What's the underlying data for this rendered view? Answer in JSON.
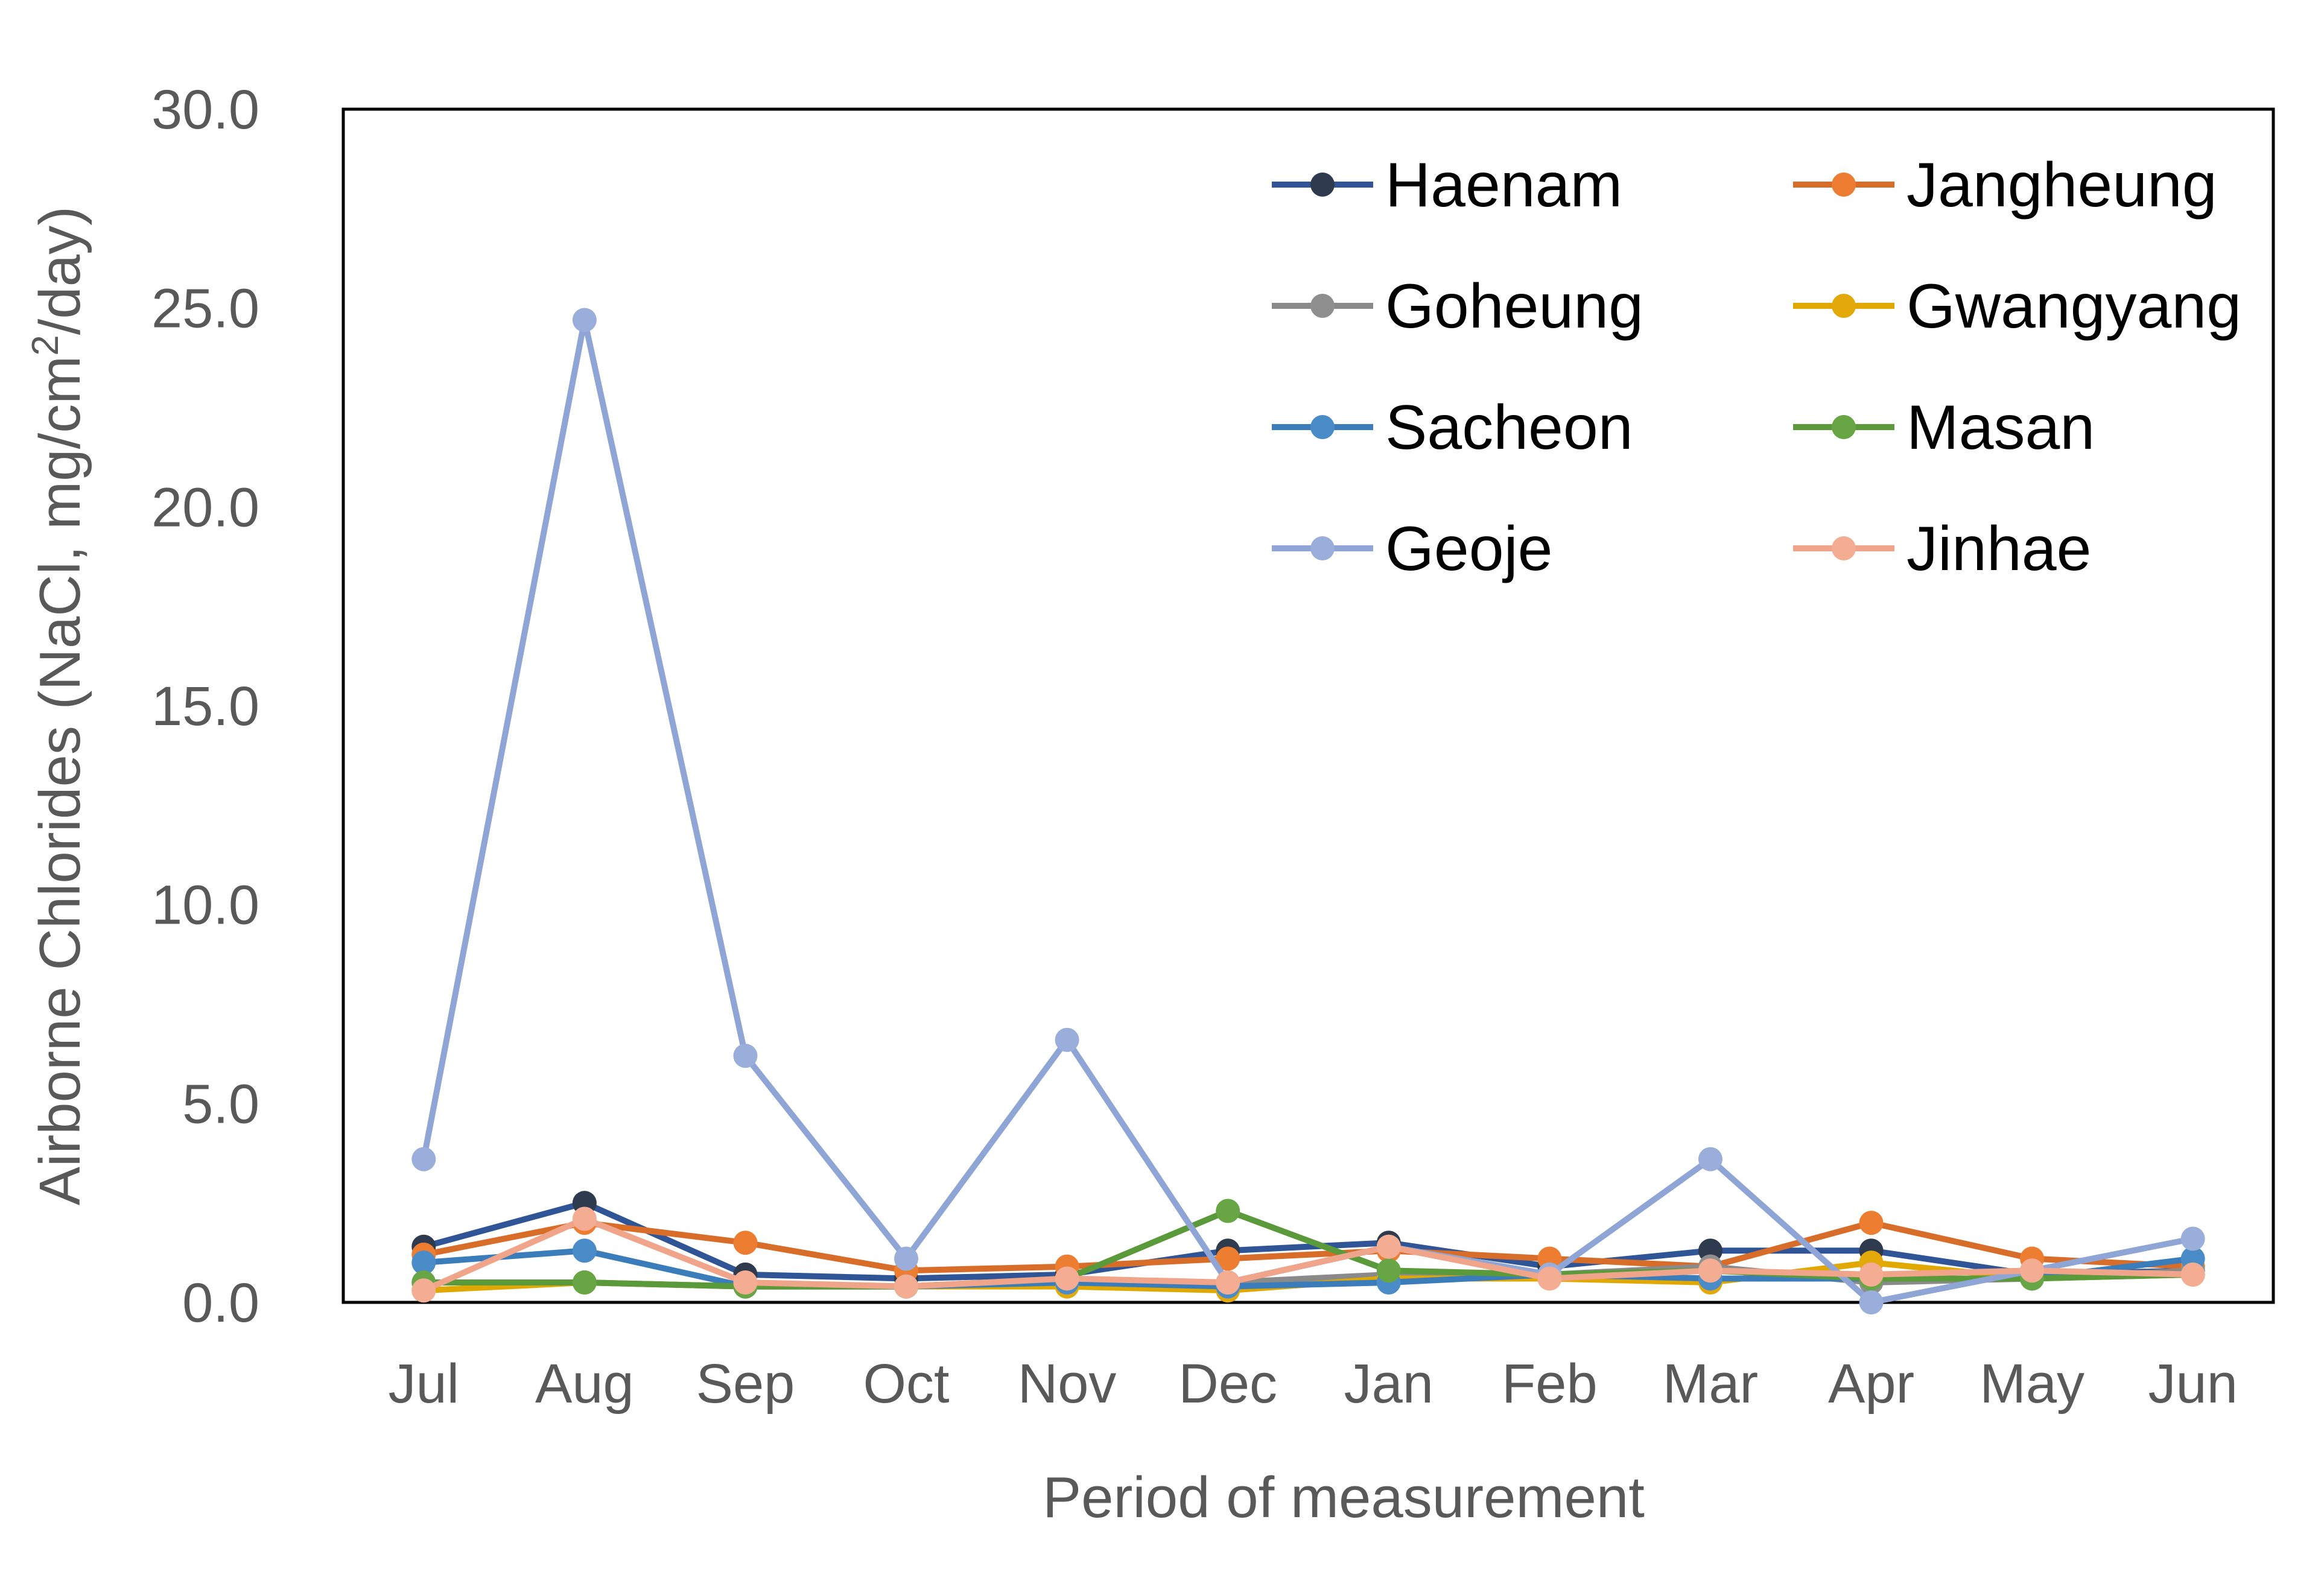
{
  "chart_data": {
    "type": "line",
    "title": "",
    "xlabel": "Period of measurement",
    "ylabel": "Airborne Chlorides (NaCl, mg/cm²/day)",
    "ylabel_parts": {
      "before": "Airborne Chlorides (NaCl, mg/cm",
      "sup": "2",
      "after": "/day)"
    },
    "ylim": [
      0,
      30
    ],
    "y_ticks": [
      "0.0",
      "5.0",
      "10.0",
      "15.0",
      "20.0",
      "25.0",
      "30.0"
    ],
    "grid": false,
    "legend_position": "top-right",
    "categories": [
      "Jul",
      "Aug",
      "Sep",
      "Oct",
      "Nov",
      "Dec",
      "Jan",
      "Feb",
      "Mar",
      "Apr",
      "May",
      "Jun"
    ],
    "series": [
      {
        "name": "Haenam",
        "color": "#2f5597",
        "marker": "#2e3a4d",
        "values": [
          1.4,
          2.5,
          0.7,
          0.6,
          0.7,
          1.3,
          1.5,
          0.9,
          1.3,
          1.3,
          0.7,
          0.8
        ]
      },
      {
        "name": "Jangheung",
        "color": "#d86d2a",
        "marker": "#ed7d31",
        "values": [
          1.2,
          2.0,
          1.5,
          0.8,
          0.9,
          1.1,
          1.3,
          1.1,
          0.9,
          2.0,
          1.1,
          0.9
        ]
      },
      {
        "name": "Goheung",
        "color": "#8a8a8a",
        "marker": "#8f8f8f",
        "values": [
          0.5,
          0.5,
          0.4,
          0.4,
          0.5,
          0.5,
          0.7,
          0.7,
          0.9,
          0.5,
          0.6,
          0.8
        ]
      },
      {
        "name": "Gwangyang",
        "color": "#e0a800",
        "marker": "#e3a90a",
        "values": [
          0.3,
          0.5,
          0.4,
          0.4,
          0.4,
          0.3,
          0.6,
          0.6,
          0.5,
          1.0,
          0.6,
          0.7
        ]
      },
      {
        "name": "Sacheon",
        "color": "#3b7dba",
        "marker": "#4a8cc7",
        "values": [
          1.0,
          1.3,
          0.4,
          0.4,
          0.5,
          0.4,
          0.5,
          0.7,
          0.6,
          0.6,
          0.6,
          1.1
        ]
      },
      {
        "name": "Masan",
        "color": "#5a9a3a",
        "marker": "#67a545",
        "values": [
          0.5,
          0.5,
          0.4,
          0.4,
          0.6,
          2.3,
          0.8,
          0.7,
          0.8,
          0.6,
          0.6,
          0.7
        ]
      },
      {
        "name": "Geoje",
        "color": "#8ea5d6",
        "marker": "#9aaedb",
        "values": [
          3.6,
          24.7,
          6.2,
          1.1,
          6.6,
          0.5,
          1.4,
          0.7,
          3.6,
          0.0,
          0.8,
          1.6
        ]
      },
      {
        "name": "Jinhae",
        "color": "#f0a48a",
        "marker": "#f4ac93",
        "values": [
          0.3,
          2.1,
          0.5,
          0.4,
          0.6,
          0.5,
          1.4,
          0.6,
          0.8,
          0.7,
          0.8,
          0.7
        ]
      }
    ]
  }
}
